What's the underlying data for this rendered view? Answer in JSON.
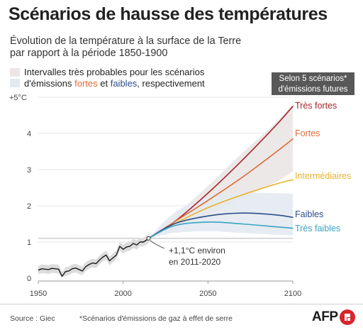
{
  "header": {
    "title": "Scénarios de hausse des températures",
    "subtitle": "Évolution de la température à la surface de la Terre par rapport à la période 1850-1900"
  },
  "legend": {
    "line1": "Intervalles très probables pour les scénarios",
    "line2_before": "d'émissions ",
    "fortes_word": "fortes",
    "et_word": " et ",
    "faibles_word": "faibles",
    "line2_after": ", respectivement"
  },
  "badge": {
    "line1": "Selon 5 scénarios*",
    "line2": "d'émissions futures"
  },
  "footer": {
    "source": "Source : Giec",
    "footnote": "*Scénarios d'émissions de gaz à effet de serre",
    "logo_text": "AFP"
  },
  "colors": {
    "tres_fortes": "#a5282b",
    "fortes": "#e16a37",
    "intermediaires": "#eab228",
    "faibles": "#2c4e8a",
    "tres_faibles": "#3aa3c3",
    "historical": "#1a1a1a",
    "historical_band": "#dcdcdc",
    "band_high": "#ebe6e5",
    "band_low": "#e3eaef",
    "badge_bg": "#585858",
    "afp_red": "#d9242d"
  },
  "chart_data": {
    "type": "line",
    "xlabel": "",
    "ylabel": "",
    "xlim": [
      1950,
      2100
    ],
    "ylim": [
      0,
      5
    ],
    "x_ticks": [
      1950,
      2000,
      2050,
      2100
    ],
    "y_ticks": [
      {
        "value": 0,
        "label": "0"
      },
      {
        "value": 1,
        "label": "1"
      },
      {
        "value": 2,
        "label": "2"
      },
      {
        "value": 3,
        "label": "3"
      },
      {
        "value": 4,
        "label": "4"
      },
      {
        "value": 5,
        "label": "+5°C"
      }
    ],
    "grid": "horizontal",
    "reference_line": 1.1,
    "annotation": {
      "x": 2015,
      "y": 1.1,
      "line1": "+1,1°C environ",
      "line2": "en 2011-2020"
    },
    "historical": {
      "x": [
        1950,
        1952,
        1954,
        1956,
        1958,
        1960,
        1962,
        1964,
        1966,
        1968,
        1970,
        1972,
        1974,
        1976,
        1978,
        1980,
        1982,
        1984,
        1986,
        1988,
        1990,
        1992,
        1994,
        1996,
        1998,
        2000,
        2002,
        2004,
        2006,
        2008,
        2010,
        2012,
        2014,
        2015
      ],
      "y": [
        0.22,
        0.26,
        0.25,
        0.24,
        0.27,
        0.26,
        0.25,
        0.05,
        0.18,
        0.2,
        0.26,
        0.28,
        0.24,
        0.2,
        0.32,
        0.38,
        0.42,
        0.4,
        0.5,
        0.58,
        0.64,
        0.48,
        0.56,
        0.64,
        0.88,
        0.8,
        0.86,
        0.88,
        0.96,
        0.92,
        1.0,
        1.0,
        1.06,
        1.1
      ],
      "band_half_width": 0.12
    },
    "series": [
      {
        "name": "Très fortes",
        "color_key": "tres_fortes",
        "x": [
          2015,
          2030,
          2050,
          2070,
          2090,
          2100
        ],
        "y": [
          1.1,
          1.55,
          2.35,
          3.25,
          4.22,
          4.75
        ]
      },
      {
        "name": "Fortes",
        "color_key": "fortes",
        "x": [
          2015,
          2030,
          2050,
          2070,
          2090,
          2100
        ],
        "y": [
          1.1,
          1.55,
          2.15,
          2.78,
          3.48,
          3.85
        ]
      },
      {
        "name": "Intermédiaires",
        "color_key": "intermediaires",
        "x": [
          2015,
          2030,
          2050,
          2070,
          2090,
          2100
        ],
        "y": [
          1.1,
          1.5,
          1.95,
          2.3,
          2.6,
          2.72
        ]
      },
      {
        "name": "Faibles",
        "color_key": "faibles",
        "x": [
          2015,
          2030,
          2050,
          2070,
          2090,
          2100
        ],
        "y": [
          1.1,
          1.5,
          1.72,
          1.8,
          1.75,
          1.68
        ]
      },
      {
        "name": "Très faibles",
        "color_key": "tres_faibles",
        "x": [
          2015,
          2030,
          2050,
          2070,
          2090,
          2100
        ],
        "y": [
          1.1,
          1.45,
          1.55,
          1.5,
          1.42,
          1.38
        ]
      }
    ],
    "band_high": {
      "x": [
        2015,
        2030,
        2050,
        2070,
        2090,
        2100
      ],
      "lower": [
        1.1,
        1.35,
        1.75,
        2.2,
        2.65,
        2.95
      ],
      "upper": [
        1.1,
        1.7,
        2.55,
        3.45,
        4.3,
        4.8
      ]
    },
    "band_low": {
      "x": [
        2015,
        2030,
        2050,
        2070,
        2090,
        2100
      ],
      "lower": [
        1.1,
        1.25,
        1.3,
        1.25,
        1.2,
        1.18
      ],
      "upper": [
        1.1,
        1.8,
        2.25,
        2.35,
        2.35,
        2.33
      ]
    }
  }
}
